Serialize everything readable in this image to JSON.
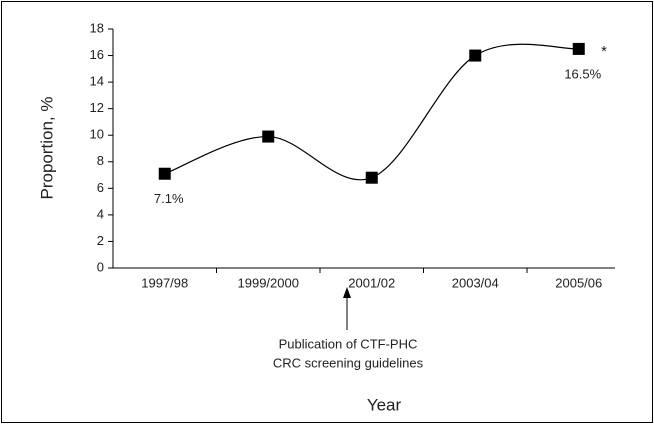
{
  "chart_data": {
    "type": "line",
    "categories": [
      "1997/98",
      "1999/2000",
      "2001/02",
      "2003/04",
      "2005/06"
    ],
    "values": [
      7.1,
      9.9,
      6.8,
      16,
      16.5
    ],
    "value_labels": [
      "7.1%",
      null,
      null,
      null,
      "16.5%"
    ],
    "color": "#000000",
    "ylim": [
      0,
      18
    ],
    "yticks": [
      0,
      2,
      4,
      6,
      8,
      10,
      12,
      14,
      16,
      18
    ],
    "x_label": "Year",
    "y_label": "Proportion, %",
    "note_mark": "*",
    "annotation": [
      "Publication of CTF-PHC",
      "CRC screening guidelines"
    ],
    "grid": false
  }
}
